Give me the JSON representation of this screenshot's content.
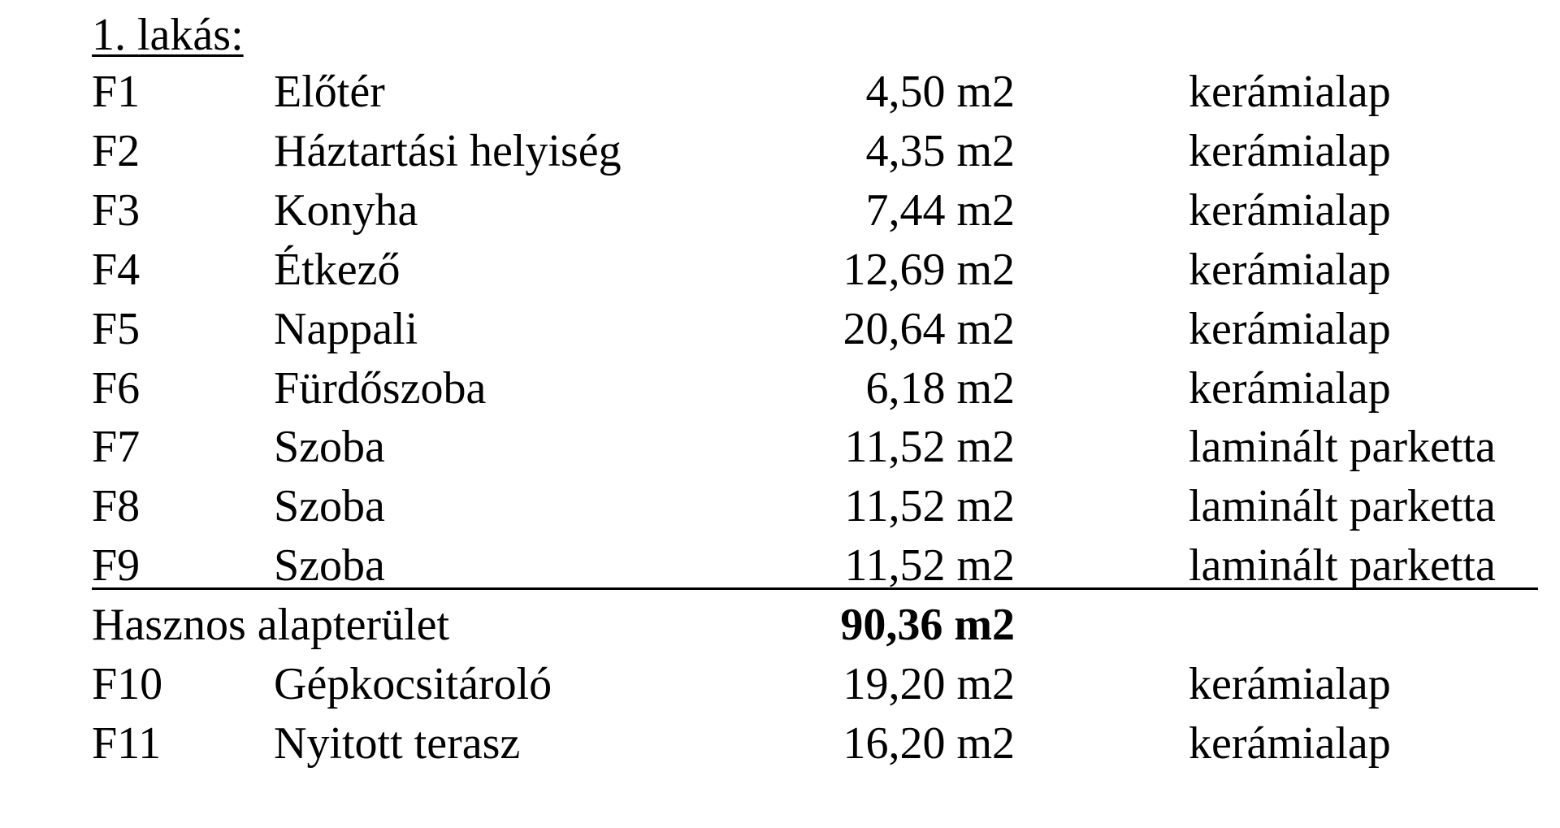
{
  "document": {
    "title": "1. lakás:",
    "rows": [
      [
        "F1",
        "Előtér",
        "4,50 m2",
        "kerámialap"
      ],
      [
        "F2",
        "Háztartási helyiség",
        "4,35 m2",
        "kerámialap"
      ],
      [
        "F3",
        "Konyha",
        "7,44 m2",
        "kerámialap"
      ],
      [
        "F4",
        "Étkező",
        "12,69 m2",
        "kerámialap"
      ],
      [
        "F5",
        "Nappali",
        "20,64 m2",
        "kerámialap"
      ],
      [
        "F6",
        "Fürdőszoba",
        "6,18 m2",
        "kerámialap"
      ],
      [
        "F7",
        "Szoba",
        "11,52 m2",
        "laminált parketta"
      ],
      [
        "F8",
        "Szoba",
        "11,52 m2",
        "laminált parketta"
      ],
      [
        "F9",
        "Szoba",
        "11,52 m2",
        "laminált parketta"
      ]
    ],
    "total": {
      "label": "Hasznos alapterület",
      "area": "90,36 m2"
    },
    "extra_rows": [
      [
        "F10",
        "Gépkocsitároló",
        "19,20 m2",
        "kerámialap"
      ],
      [
        "F11",
        "Nyitott terasz",
        "16,20 m2",
        "kerámialap"
      ]
    ]
  }
}
